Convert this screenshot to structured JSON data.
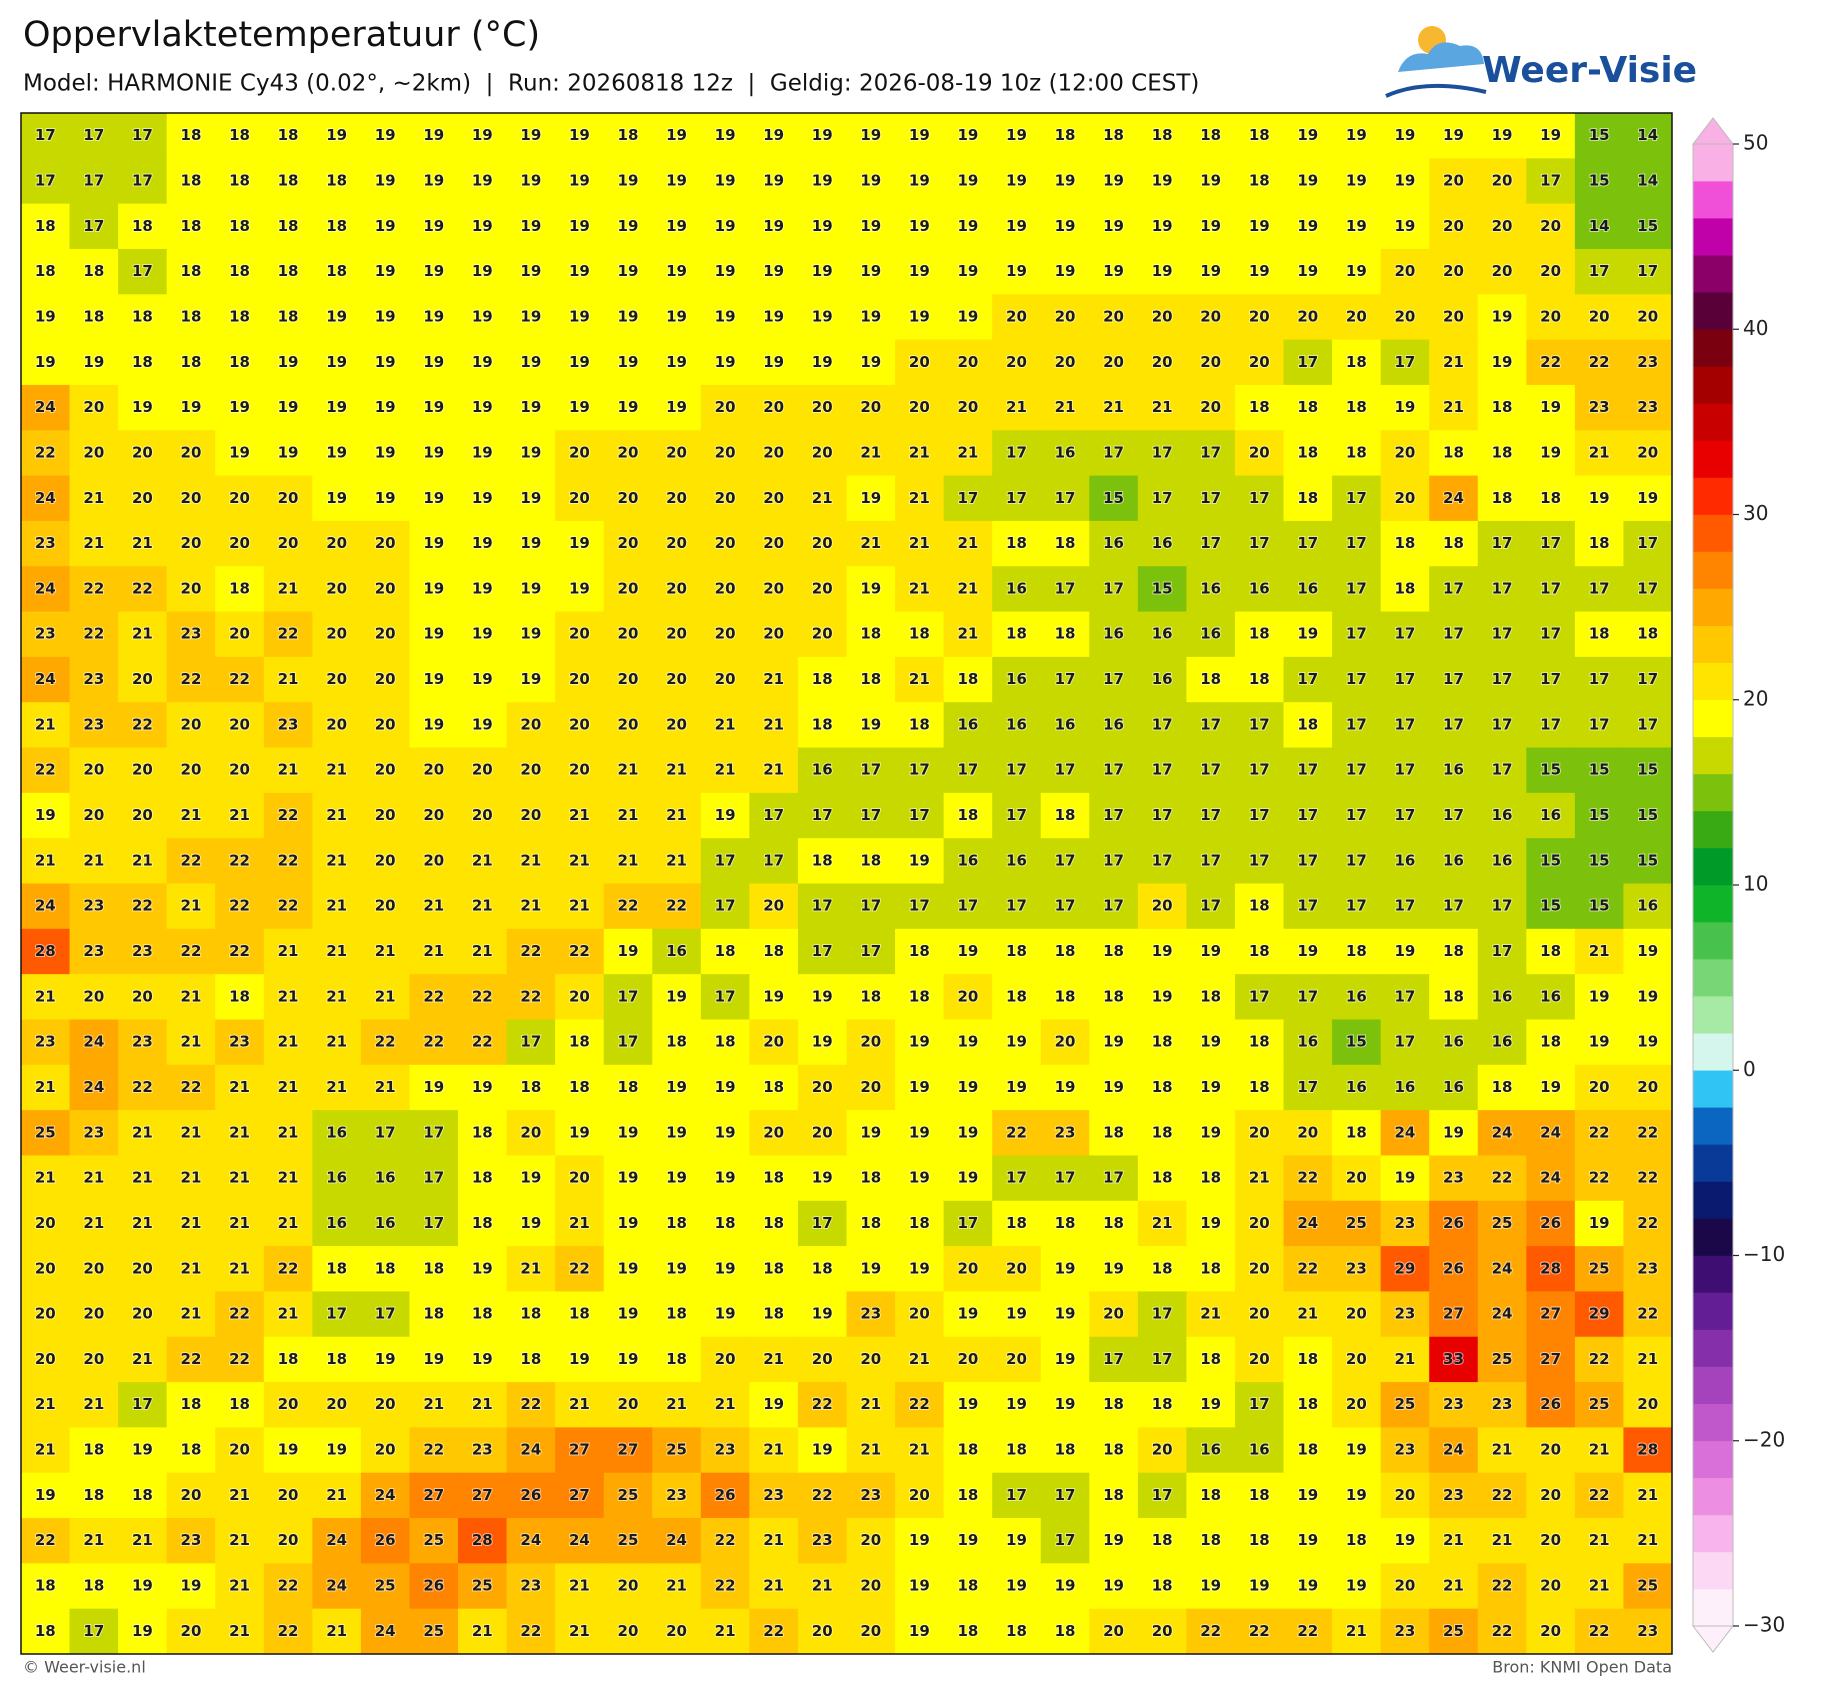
{
  "header": {
    "title": "Oppervlaktetemperatuur (°C)",
    "subtitle": "Model: HARMONIE Cy43 (0.02°, ~2km)  |  Run: 20260818 12z  |  Geldig: 2026-08-19 10z (12:00 CEST)",
    "logo": "Weer-Visie"
  },
  "map": {
    "grid": [
      [
        17,
        17,
        17,
        18,
        18,
        18,
        19,
        19,
        19,
        19,
        19,
        19,
        18,
        19,
        19,
        19,
        19,
        19,
        19,
        19,
        19,
        18,
        18,
        18,
        18,
        18,
        19,
        19,
        19,
        19,
        19,
        19,
        15,
        14
      ],
      [
        17,
        17,
        17,
        18,
        18,
        18,
        18,
        19,
        19,
        19,
        19,
        19,
        19,
        19,
        19,
        19,
        19,
        19,
        19,
        19,
        19,
        19,
        19,
        19,
        19,
        18,
        19,
        19,
        19,
        20,
        20,
        17,
        15,
        14
      ],
      [
        18,
        17,
        18,
        18,
        18,
        18,
        18,
        19,
        19,
        19,
        19,
        19,
        19,
        19,
        19,
        19,
        19,
        19,
        19,
        19,
        19,
        19,
        19,
        19,
        19,
        19,
        19,
        19,
        19,
        20,
        20,
        20,
        14,
        15
      ],
      [
        18,
        18,
        17,
        18,
        18,
        18,
        18,
        19,
        19,
        19,
        19,
        19,
        19,
        19,
        19,
        19,
        19,
        19,
        19,
        19,
        19,
        19,
        19,
        19,
        19,
        19,
        19,
        19,
        20,
        20,
        20,
        20,
        17,
        17
      ],
      [
        19,
        18,
        18,
        18,
        18,
        18,
        19,
        19,
        19,
        19,
        19,
        19,
        19,
        19,
        19,
        19,
        19,
        19,
        19,
        19,
        20,
        20,
        20,
        20,
        20,
        20,
        20,
        20,
        20,
        20,
        19,
        20,
        20,
        20
      ],
      [
        19,
        19,
        18,
        18,
        18,
        19,
        19,
        19,
        19,
        19,
        19,
        19,
        19,
        19,
        19,
        19,
        19,
        19,
        20,
        20,
        20,
        20,
        20,
        20,
        20,
        20,
        17,
        18,
        17,
        21,
        19,
        22,
        22,
        23
      ],
      [
        24,
        20,
        19,
        19,
        19,
        19,
        19,
        19,
        19,
        19,
        19,
        19,
        19,
        19,
        20,
        20,
        20,
        20,
        20,
        20,
        21,
        21,
        21,
        21,
        20,
        18,
        18,
        18,
        19,
        21,
        18,
        19,
        23,
        23
      ],
      [
        22,
        20,
        20,
        20,
        19,
        19,
        19,
        19,
        19,
        19,
        19,
        20,
        20,
        20,
        20,
        20,
        20,
        21,
        21,
        21,
        17,
        16,
        17,
        17,
        17,
        20,
        18,
        18,
        20,
        18,
        18,
        19,
        21,
        20
      ],
      [
        24,
        21,
        20,
        20,
        20,
        20,
        19,
        19,
        19,
        19,
        19,
        20,
        20,
        20,
        20,
        20,
        21,
        19,
        21,
        17,
        17,
        17,
        15,
        17,
        17,
        17,
        18,
        17,
        20,
        24,
        18,
        18,
        19,
        19
      ],
      [
        23,
        21,
        21,
        20,
        20,
        20,
        20,
        20,
        19,
        19,
        19,
        19,
        20,
        20,
        20,
        20,
        20,
        21,
        21,
        21,
        18,
        18,
        16,
        16,
        17,
        17,
        17,
        17,
        18,
        18,
        17,
        17,
        18,
        17
      ],
      [
        24,
        22,
        22,
        20,
        18,
        21,
        20,
        20,
        19,
        19,
        19,
        19,
        20,
        20,
        20,
        20,
        20,
        19,
        21,
        21,
        16,
        17,
        17,
        15,
        16,
        16,
        16,
        17,
        18,
        17,
        17,
        17,
        17,
        17
      ],
      [
        23,
        22,
        21,
        23,
        20,
        22,
        20,
        20,
        19,
        19,
        19,
        20,
        20,
        20,
        20,
        20,
        20,
        18,
        18,
        21,
        18,
        18,
        16,
        16,
        16,
        18,
        19,
        17,
        17,
        17,
        17,
        17,
        18,
        18
      ],
      [
        24,
        23,
        20,
        22,
        22,
        21,
        20,
        20,
        19,
        19,
        19,
        20,
        20,
        20,
        20,
        21,
        18,
        18,
        21,
        18,
        16,
        17,
        17,
        16,
        18,
        18,
        17,
        17,
        17,
        17,
        17,
        17,
        17,
        17
      ],
      [
        21,
        23,
        22,
        20,
        20,
        23,
        20,
        20,
        19,
        19,
        20,
        20,
        20,
        20,
        21,
        21,
        18,
        19,
        18,
        16,
        16,
        16,
        16,
        17,
        17,
        17,
        18,
        17,
        17,
        17,
        17,
        17,
        17,
        17
      ],
      [
        22,
        20,
        20,
        20,
        20,
        21,
        21,
        20,
        20,
        20,
        20,
        20,
        21,
        21,
        21,
        21,
        16,
        17,
        17,
        17,
        17,
        17,
        17,
        17,
        17,
        17,
        17,
        17,
        17,
        16,
        17,
        15,
        15,
        15
      ],
      [
        19,
        20,
        20,
        21,
        21,
        22,
        21,
        20,
        20,
        20,
        20,
        21,
        21,
        21,
        19,
        17,
        17,
        17,
        17,
        18,
        17,
        18,
        17,
        17,
        17,
        17,
        17,
        17,
        17,
        17,
        16,
        16,
        15,
        15
      ],
      [
        21,
        21,
        21,
        22,
        22,
        22,
        21,
        20,
        20,
        21,
        21,
        21,
        21,
        21,
        17,
        17,
        18,
        18,
        19,
        16,
        16,
        17,
        17,
        17,
        17,
        17,
        17,
        17,
        16,
        16,
        16,
        15,
        15,
        15
      ],
      [
        24,
        23,
        22,
        21,
        22,
        22,
        21,
        20,
        21,
        21,
        21,
        21,
        22,
        22,
        17,
        20,
        17,
        17,
        17,
        17,
        17,
        17,
        17,
        20,
        17,
        18,
        17,
        17,
        17,
        17,
        17,
        15,
        15,
        16
      ],
      [
        28,
        23,
        23,
        22,
        22,
        21,
        21,
        21,
        21,
        21,
        22,
        22,
        19,
        16,
        18,
        18,
        17,
        17,
        18,
        19,
        18,
        18,
        18,
        19,
        19,
        18,
        19,
        18,
        19,
        18,
        17,
        18,
        21,
        19
      ],
      [
        21,
        20,
        20,
        21,
        18,
        21,
        21,
        21,
        22,
        22,
        22,
        20,
        17,
        19,
        17,
        19,
        19,
        18,
        18,
        20,
        18,
        18,
        18,
        19,
        18,
        17,
        17,
        16,
        17,
        18,
        16,
        16,
        19,
        19
      ],
      [
        23,
        24,
        23,
        21,
        23,
        21,
        21,
        22,
        22,
        22,
        17,
        18,
        17,
        18,
        18,
        20,
        19,
        20,
        19,
        19,
        19,
        20,
        19,
        18,
        19,
        18,
        16,
        15,
        17,
        16,
        16,
        18,
        19,
        19
      ],
      [
        21,
        24,
        22,
        22,
        21,
        21,
        21,
        21,
        19,
        19,
        18,
        18,
        18,
        19,
        19,
        18,
        20,
        20,
        19,
        19,
        19,
        19,
        19,
        18,
        19,
        18,
        17,
        16,
        16,
        16,
        18,
        19,
        20,
        20
      ],
      [
        25,
        23,
        21,
        21,
        21,
        21,
        16,
        17,
        17,
        18,
        20,
        19,
        19,
        19,
        19,
        20,
        20,
        19,
        19,
        19,
        22,
        23,
        18,
        18,
        19,
        20,
        20,
        18,
        24,
        19,
        24,
        24,
        22,
        22
      ],
      [
        21,
        21,
        21,
        21,
        21,
        21,
        16,
        16,
        17,
        18,
        19,
        20,
        19,
        19,
        19,
        18,
        19,
        18,
        19,
        19,
        17,
        17,
        17,
        18,
        18,
        21,
        22,
        20,
        19,
        23,
        22,
        24,
        22,
        22
      ],
      [
        20,
        21,
        21,
        21,
        21,
        21,
        16,
        16,
        17,
        18,
        19,
        21,
        19,
        18,
        18,
        18,
        17,
        18,
        18,
        17,
        18,
        18,
        18,
        21,
        19,
        20,
        24,
        25,
        23,
        26,
        25,
        26,
        19,
        22
      ],
      [
        20,
        20,
        20,
        21,
        21,
        22,
        18,
        18,
        18,
        19,
        21,
        22,
        19,
        19,
        19,
        18,
        18,
        19,
        19,
        20,
        20,
        19,
        19,
        18,
        18,
        20,
        22,
        23,
        29,
        26,
        24,
        28,
        25,
        23
      ],
      [
        20,
        20,
        20,
        21,
        22,
        21,
        17,
        17,
        18,
        18,
        18,
        18,
        19,
        18,
        19,
        18,
        19,
        23,
        20,
        19,
        19,
        19,
        20,
        17,
        21,
        20,
        21,
        20,
        23,
        27,
        24,
        27,
        29,
        22
      ],
      [
        20,
        20,
        21,
        22,
        22,
        18,
        18,
        19,
        19,
        19,
        18,
        19,
        19,
        18,
        20,
        21,
        20,
        20,
        21,
        20,
        20,
        19,
        17,
        17,
        18,
        20,
        18,
        20,
        21,
        33,
        25,
        27,
        22,
        21
      ],
      [
        21,
        21,
        17,
        18,
        18,
        20,
        20,
        20,
        21,
        21,
        22,
        21,
        20,
        21,
        21,
        19,
        22,
        21,
        22,
        19,
        19,
        19,
        18,
        18,
        19,
        17,
        18,
        20,
        25,
        23,
        23,
        26,
        25,
        20
      ],
      [
        21,
        18,
        19,
        18,
        20,
        19,
        19,
        20,
        22,
        23,
        24,
        27,
        27,
        25,
        23,
        21,
        19,
        21,
        21,
        18,
        18,
        18,
        18,
        20,
        16,
        16,
        18,
        19,
        23,
        24,
        21,
        20,
        21,
        28
      ],
      [
        19,
        18,
        18,
        20,
        21,
        20,
        21,
        24,
        27,
        27,
        26,
        27,
        25,
        23,
        26,
        23,
        22,
        23,
        20,
        18,
        17,
        17,
        18,
        17,
        18,
        18,
        19,
        19,
        20,
        23,
        22,
        20,
        22,
        21
      ],
      [
        22,
        21,
        21,
        23,
        21,
        20,
        24,
        26,
        25,
        28,
        24,
        24,
        25,
        24,
        22,
        21,
        23,
        20,
        19,
        19,
        19,
        17,
        19,
        18,
        18,
        18,
        19,
        18,
        19,
        21,
        21,
        20,
        21,
        21
      ],
      [
        18,
        18,
        19,
        19,
        21,
        22,
        24,
        25,
        26,
        25,
        23,
        21,
        20,
        21,
        22,
        21,
        21,
        20,
        19,
        18,
        19,
        19,
        19,
        18,
        19,
        19,
        19,
        19,
        20,
        21,
        22,
        20,
        21,
        25
      ],
      [
        18,
        17,
        19,
        20,
        21,
        22,
        21,
        24,
        25,
        21,
        22,
        21,
        20,
        20,
        21,
        22,
        20,
        20,
        19,
        18,
        18,
        18,
        20,
        20,
        22,
        22,
        22,
        21,
        23,
        25,
        22,
        20,
        22,
        23
      ]
    ]
  },
  "colorbar": {
    "lim": [
      -30,
      50
    ],
    "ticks": [
      50,
      40,
      30,
      20,
      10,
      0,
      {
        "value": -10,
        "label": "−10"
      },
      {
        "value": -20,
        "label": "−20"
      },
      {
        "value": -30,
        "label": "−30"
      }
    ],
    "colors": [
      "#fdf0fb",
      "#fcd8f5",
      "#f8b4ec",
      "#ec8fe2",
      "#d96fd8",
      "#c057ca",
      "#a443bb",
      "#8530aa",
      "#631d95",
      "#3f0e72",
      "#1a0848",
      "#0a1a6e",
      "#0a3a98",
      "#0a66c0",
      "#30c4f4",
      "#d4f6ec",
      "#a6eaa6",
      "#78d676",
      "#48c24c",
      "#10b428",
      "#009a28",
      "#3aaa14",
      "#7cc20c",
      "#c8d900",
      "#ffff00",
      "#ffe400",
      "#ffc800",
      "#ffa800",
      "#ff8400",
      "#ff5a00",
      "#ff2a00",
      "#e80000",
      "#c80000",
      "#a40000",
      "#7a0010",
      "#5a0038",
      "#8a0068",
      "#c000a8",
      "#f050d8",
      "#f9b0e4"
    ]
  },
  "footer": {
    "left": "© Weer-visie.nl",
    "right": "Bron: KNMI Open Data"
  }
}
